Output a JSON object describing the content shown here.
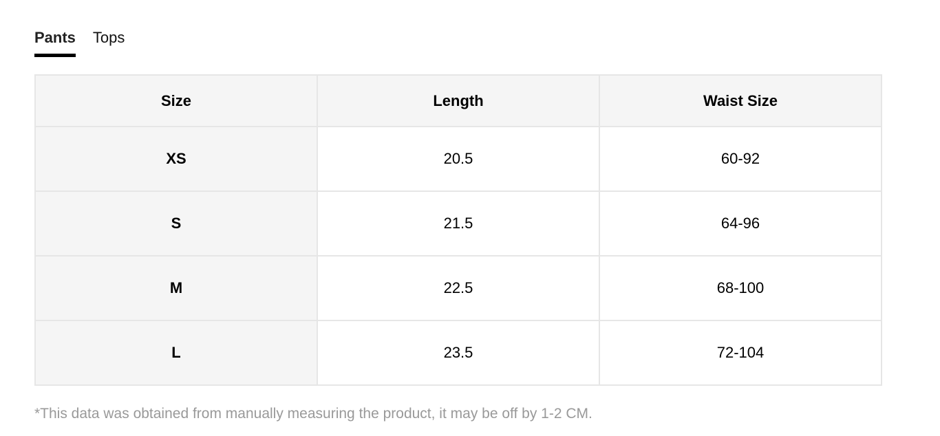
{
  "tabs": [
    {
      "label": "Pants",
      "active": true
    },
    {
      "label": "Tops",
      "active": false
    }
  ],
  "table": {
    "headers": [
      "Size",
      "Length",
      "Waist Size"
    ],
    "rows": [
      [
        "XS",
        "20.5",
        "60-92"
      ],
      [
        "S",
        "21.5",
        "64-96"
      ],
      [
        "M",
        "22.5",
        "68-100"
      ],
      [
        "L",
        "23.5",
        "72-104"
      ]
    ]
  },
  "note": "*This data was obtained from manually measuring the product, it may be off by 1-2 CM."
}
